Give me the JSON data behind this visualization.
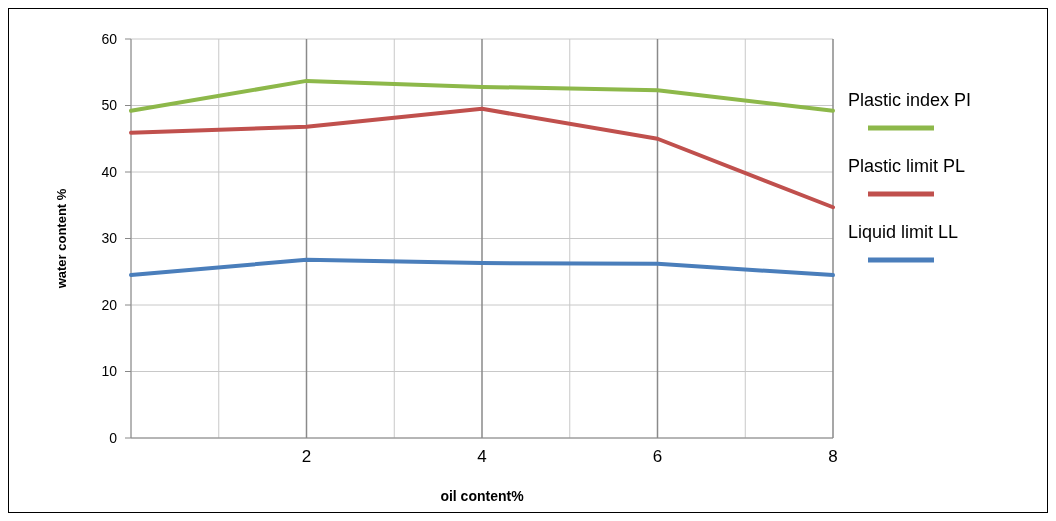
{
  "chart_data": {
    "type": "line",
    "xlabel": "oil content%",
    "ylabel": "water content %",
    "x": [
      0,
      2,
      4,
      6,
      8
    ],
    "series": [
      {
        "name": "Plastic index PI",
        "color": "#8db84a",
        "values": [
          49.2,
          53.7,
          52.8,
          52.3,
          49.2
        ]
      },
      {
        "name": "Plastic limit PL",
        "color": "#c0504d",
        "values": [
          45.9,
          46.8,
          49.5,
          45,
          34.7
        ]
      },
      {
        "name": "Liquid limit LL",
        "color": "#4a7ebb",
        "values": [
          24.5,
          26.8,
          26.3,
          26.2,
          24.5
        ]
      }
    ],
    "xlim": [
      0,
      8
    ],
    "xticks": [
      {
        "value": 0,
        "label": null
      },
      {
        "value": 1,
        "label": null
      },
      2,
      {
        "value": 3,
        "label": null
      },
      4,
      {
        "value": 5,
        "label": null
      },
      6,
      {
        "value": 7,
        "label": null
      },
      8
    ],
    "ylim": [
      0,
      60
    ],
    "yticks": [
      0,
      10,
      20,
      30,
      40,
      50,
      60
    ],
    "grid": true,
    "legend": "right",
    "marker": "none",
    "line_style": "solid"
  }
}
